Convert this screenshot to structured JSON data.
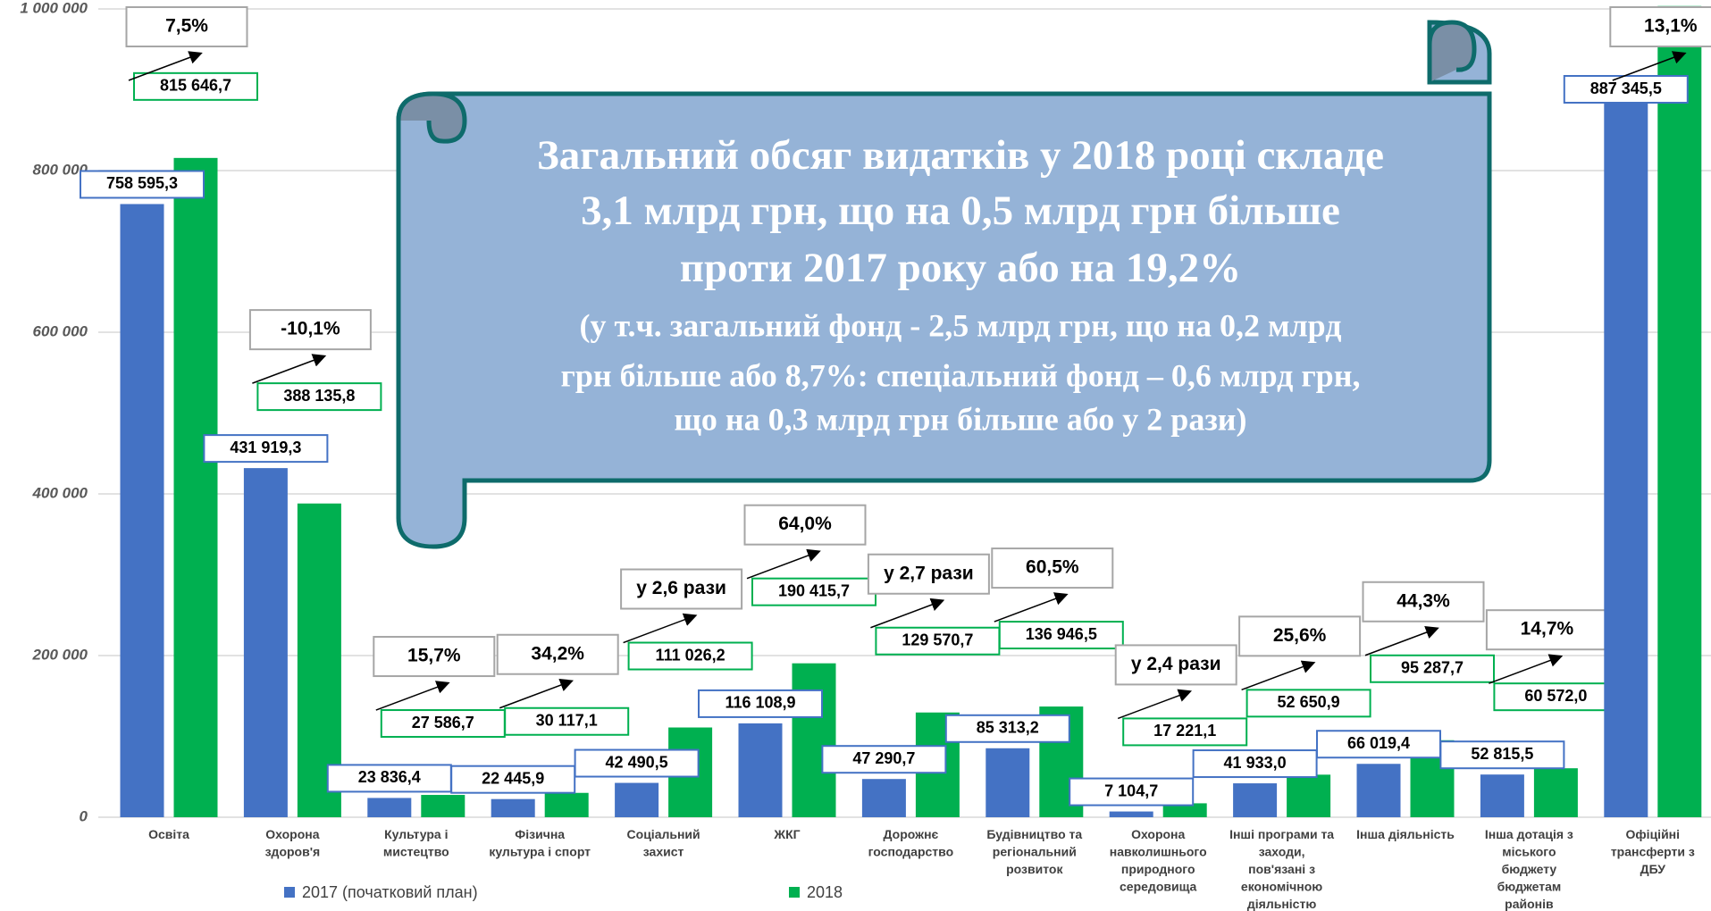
{
  "chart_data": {
    "type": "bar",
    "categories": [
      "Освіта",
      "Охорона\nздоров'я",
      "Культура і\nмистецтво",
      "Фізична\nкультура і спорт",
      "Соціальний\nзахист",
      "ЖКГ",
      "Дорожнє\nгосподарство",
      "Будівництво та\nрегіональний\nрозвиток",
      "Охорона\nнавколишнього\nприродного\nсередовища",
      "Інші програми та\nзаходи,\nпов'язані з\nекономічною\nдіяльністю",
      "Інша діяльність",
      "Інша дотація з\nміського\nбюджету\nбюджетам\nрайонів",
      "Офіційні\nтрансферти з\nДБУ"
    ],
    "series": [
      {
        "name": "2017 (початковий план)",
        "color": "#4472c4",
        "values": [
          758595.3,
          431919.3,
          23836.4,
          22445.9,
          42490.5,
          116108.9,
          47290.7,
          85313.2,
          7104.7,
          41933.0,
          66019.4,
          52815.5,
          887345.5
        ],
        "value_labels": [
          "758 595,3",
          "431 919,3",
          "23 836,4",
          "22 445,9",
          "42 490,5",
          "116 108,9",
          "47 290,7",
          "85 313,2",
          "7 104,7",
          "41 933,0",
          "66 019,4",
          "52 815,5",
          "887 345,5"
        ]
      },
      {
        "name": "2018",
        "color": "#00b050",
        "values": [
          815646.7,
          388135.8,
          27586.7,
          30117.1,
          111026.2,
          190415.7,
          129570.7,
          136946.5,
          17221.1,
          52650.9,
          95287.7,
          60572.0,
          1003600
        ],
        "value_labels": [
          "815 646,7",
          "388 135,8",
          "27 586,7",
          "30 117,1",
          "111 026,2",
          "190 415,7",
          "129 570,7",
          "136 946,5",
          "17 221,1",
          "52 650,9",
          "95 287,7",
          "60 572,0",
          null
        ]
      }
    ],
    "changes": [
      "7,5%",
      "-10,1%",
      "15,7%",
      "34,2%",
      "у 2,6 рази",
      "64,0%",
      "у 2,7 рази",
      "60,5%",
      "у 2,4 рази",
      "25,6%",
      "44,3%",
      "14,7%",
      "13,1%"
    ],
    "banner_lines": [
      "Загальний обсяг видатків у 2018 році складе",
      "3,1 млрд грн, що на 0,5 млрд грн більше",
      "проти 2017 року або на 19,2%",
      "(у т.ч. загальний фонд - 2,5 млрд грн, що на 0,2 млрд",
      "грн більше або 8,7%: спеціальний фонд – 0,6 млрд грн,",
      "що на 0,3 млрд грн більше або у 2 рази)"
    ],
    "ylim": [
      0,
      1000000
    ],
    "yticks": [
      0,
      {
        "value": 200000,
        "label": "200 000"
      },
      {
        "value": 400000,
        "label": "400 000"
      },
      {
        "value": 600000,
        "label": "600 000"
      },
      {
        "value": 800000,
        "label": "800 000"
      },
      {
        "value": 1000000,
        "label": "1 000 000"
      }
    ],
    "grid": true,
    "legend": "bottom"
  }
}
